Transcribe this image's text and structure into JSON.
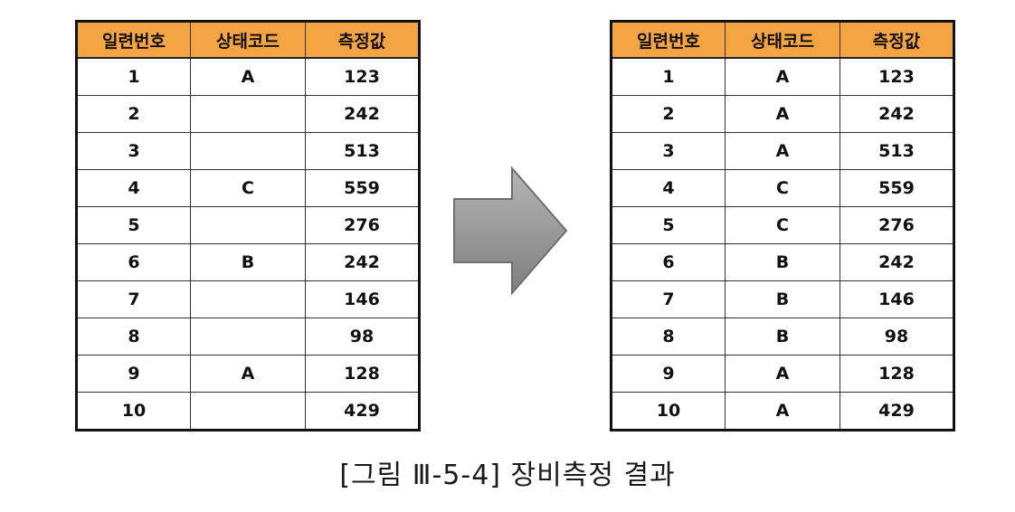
{
  "left_table": {
    "headers": [
      "일련번호",
      "상태코드",
      "측정값"
    ],
    "rows": [
      [
        "1",
        "A",
        "123"
      ],
      [
        "2",
        "",
        "242"
      ],
      [
        "3",
        "",
        "513"
      ],
      [
        "4",
        "C",
        "559"
      ],
      [
        "5",
        "",
        "276"
      ],
      [
        "6",
        "B",
        "242"
      ],
      [
        "7",
        "",
        "146"
      ],
      [
        "8",
        "",
        "98"
      ],
      [
        "9",
        "A",
        "128"
      ],
      [
        "10",
        "",
        "429"
      ]
    ]
  },
  "right_table": {
    "headers": [
      "일련번호",
      "상태코드",
      "측정값"
    ],
    "rows": [
      [
        "1",
        "A",
        "123"
      ],
      [
        "2",
        "A",
        "242"
      ],
      [
        "3",
        "A",
        "513"
      ],
      [
        "4",
        "C",
        "559"
      ],
      [
        "5",
        "C",
        "276"
      ],
      [
        "6",
        "B",
        "242"
      ],
      [
        "7",
        "B",
        "146"
      ],
      [
        "8",
        "B",
        "98"
      ],
      [
        "9",
        "A",
        "128"
      ],
      [
        "10",
        "A",
        "429"
      ]
    ]
  },
  "caption": "[그림 Ⅲ-5-4] 장비측정 결과",
  "colors": {
    "header_fill": "#f5a443",
    "arrow_fill": "#9a9a9a"
  },
  "icons": {
    "arrow": "right-arrow-icon"
  }
}
